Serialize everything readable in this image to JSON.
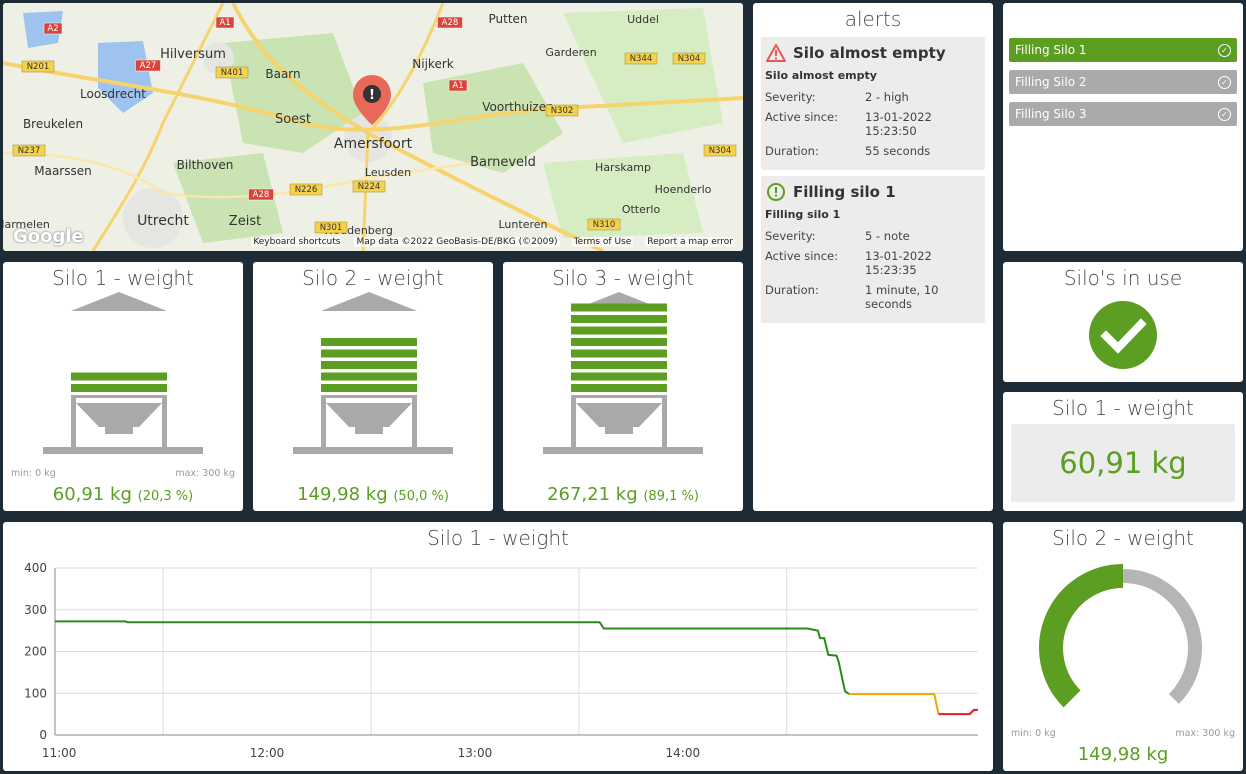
{
  "map": {
    "places": [
      "Hilversum",
      "Loosdrecht",
      "Breukelen",
      "Maarssen",
      "Utrecht",
      "Zeist",
      "Bilthoven",
      "Soest",
      "Baarn",
      "Amersfoort",
      "Leusden",
      "Woudenberg",
      "Nijkerk",
      "Putten",
      "Garderen",
      "Uddel",
      "Voorthuizen",
      "Barneveld",
      "Harskamp",
      "Hoenderlo",
      "Otterlo",
      "Lunteren",
      "Harmelen"
    ],
    "roads": [
      "A2",
      "A1",
      "A28",
      "N201",
      "A27",
      "N401",
      "N237",
      "A28",
      "N226",
      "N224",
      "N301",
      "A1",
      "N302",
      "N344",
      "N304",
      "N304",
      "N310"
    ],
    "footer": [
      "Keyboard shortcuts",
      "Map data ©2022 GeoBasis-DE/BKG (©2009)",
      "Terms of Use",
      "Report a map error"
    ],
    "logo": "Google"
  },
  "alerts": {
    "title": "alerts",
    "items": [
      {
        "title": "Silo almost empty",
        "subtitle": "Silo almost empty",
        "severity_label": "Severity:",
        "severity": "2 - high",
        "since_label": "Active since:",
        "since_date": "13-01-2022",
        "since_time": "15:23:50",
        "duration_label": "Duration:",
        "duration": "55 seconds",
        "icon": "warning-triangle-icon",
        "color": "#e85a4f"
      },
      {
        "title": "Filling silo 1",
        "subtitle": "Filling silo 1",
        "severity_label": "Severity:",
        "severity": "5 - note",
        "since_label": "Active since:",
        "since_date": "13-01-2022",
        "since_time": "15:23:35",
        "duration_label": "Duration:",
        "duration": "1 minute, 10 seconds",
        "icon": "info-circle-icon",
        "color": "#5c9e22"
      }
    ]
  },
  "fill_list": {
    "items": [
      {
        "label": "Filling Silo 1",
        "active": true
      },
      {
        "label": "Filling Silo 2",
        "active": false
      },
      {
        "label": "Filling Silo 3",
        "active": false
      }
    ]
  },
  "silos": [
    {
      "title": "Silo 1 - weight",
      "value": "60,91 kg",
      "percent": "(20,3 %)",
      "fill_fraction": 0.203,
      "min": "min: 0 kg",
      "max": "max: 300 kg"
    },
    {
      "title": "Silo 2 - weight",
      "value": "149,98 kg",
      "percent": "(50,0 %)",
      "fill_fraction": 0.5
    },
    {
      "title": "Silo 3 - weight",
      "value": "267,21 kg",
      "percent": "(89,1 %)",
      "fill_fraction": 0.891
    }
  ],
  "in_use": {
    "title": "Silo's in use"
  },
  "silo1_text": {
    "title": "Silo 1 - weight",
    "value": "60,91 kg"
  },
  "gauge": {
    "title": "Silo 2 - weight",
    "value": "149,98 kg",
    "fraction": 0.5,
    "min": "min: 0 kg",
    "max": "max: 300 kg"
  },
  "colors": {
    "green": "#5c9e22",
    "grey": "#aaaaaa",
    "orange": "#f0a500",
    "red": "#e02020",
    "line_green": "#2a8a1a"
  },
  "chart_data": {
    "type": "line",
    "title": "Silo 1 - weight",
    "ylim": [
      0,
      400
    ],
    "yticks": [
      "0",
      "100",
      "200",
      "300",
      "400"
    ],
    "xticks": [
      "11:00",
      "12:00",
      "13:00",
      "14:00"
    ],
    "xlim_hours": [
      10.98,
      15.0
    ],
    "series": [
      {
        "color": "green",
        "points": [
          [
            10.98,
            272
          ],
          [
            11.32,
            272
          ],
          [
            11.33,
            270
          ],
          [
            13.6,
            270
          ],
          [
            13.62,
            255
          ],
          [
            14.6,
            255
          ],
          [
            14.65,
            250
          ],
          [
            14.66,
            232
          ],
          [
            14.68,
            232
          ],
          [
            14.7,
            192
          ],
          [
            14.74,
            190
          ],
          [
            14.75,
            175
          ],
          [
            14.78,
            105
          ],
          [
            14.8,
            98
          ]
        ]
      },
      {
        "color": "orange",
        "points": [
          [
            14.8,
            98
          ],
          [
            15.21,
            98
          ],
          [
            15.23,
            50
          ]
        ]
      },
      {
        "color": "red",
        "points": [
          [
            15.23,
            50
          ],
          [
            15.38,
            50
          ],
          [
            15.4,
            60
          ],
          [
            15.42,
            60
          ]
        ]
      }
    ]
  }
}
